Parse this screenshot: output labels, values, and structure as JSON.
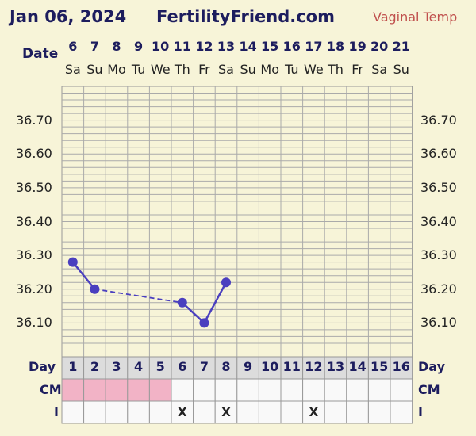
{
  "header": {
    "date": "Jan 06, 2024",
    "site": "FertilityFriend.com",
    "temp_type": "Vaginal Temp"
  },
  "row_labels": {
    "date": "Date",
    "day": "Day",
    "cm": "CM",
    "i": "I"
  },
  "chart_data": {
    "type": "line",
    "title": "",
    "x_dates": [
      "6",
      "7",
      "8",
      "9",
      "10",
      "11",
      "12",
      "13",
      "14",
      "15",
      "16",
      "17",
      "18",
      "19",
      "20",
      "21"
    ],
    "x_weekdays": [
      "Sa",
      "Su",
      "Mo",
      "Tu",
      "We",
      "Th",
      "Fr",
      "Sa",
      "Su",
      "Mo",
      "Tu",
      "We",
      "Th",
      "Fr",
      "Sa",
      "Su"
    ],
    "cycle_days": [
      "1",
      "2",
      "3",
      "4",
      "5",
      "6",
      "7",
      "8",
      "9",
      "10",
      "11",
      "12",
      "13",
      "14",
      "15",
      "16"
    ],
    "y_ticks": [
      "36.70",
      "36.60",
      "36.50",
      "36.40",
      "36.30",
      "36.20",
      "36.10"
    ],
    "ylim": [
      36.0,
      36.8
    ],
    "grid": true,
    "series": [
      {
        "points": [
          {
            "day": 6,
            "temp": 36.28
          },
          {
            "day": 7,
            "temp": 36.2
          },
          {
            "day": 11,
            "temp": 36.16
          },
          {
            "day": 12,
            "temp": 36.1
          },
          {
            "day": 13,
            "temp": 36.22
          }
        ],
        "solid_segments": [
          [
            6,
            7
          ],
          [
            11,
            12
          ],
          [
            12,
            13
          ]
        ],
        "dashed_segments": [
          [
            7,
            11
          ]
        ],
        "color": "#4a3fbf"
      }
    ],
    "cm_shaded_days": [
      1,
      2,
      3,
      4,
      5
    ],
    "cm_shade_color": "#f2b3c6",
    "i_marks": [
      "",
      "",
      "",
      "",
      "",
      "X",
      "",
      "X",
      "",
      "",
      "",
      "X",
      "",
      "",
      "",
      ""
    ]
  }
}
